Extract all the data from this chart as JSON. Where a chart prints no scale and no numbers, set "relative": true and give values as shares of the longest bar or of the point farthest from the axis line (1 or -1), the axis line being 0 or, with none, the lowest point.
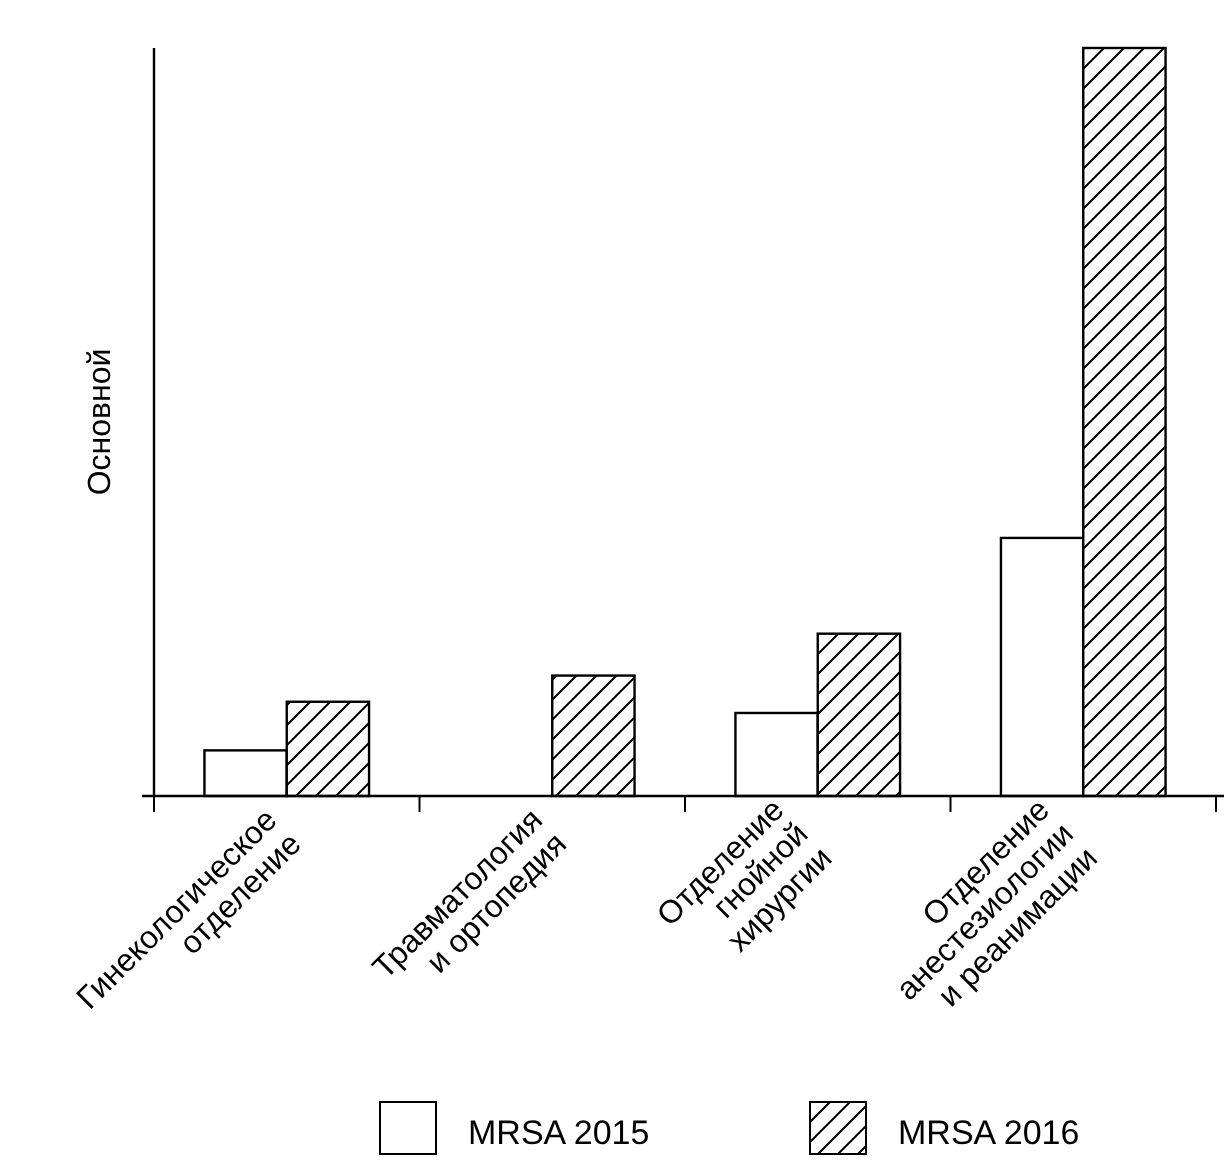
{
  "chart_data": {
    "type": "bar",
    "ylabel": "Основной",
    "relative": true,
    "legend": "bottom",
    "categories": [
      "Гинекологическое\nотделение",
      "Травматология\nи ортопедия",
      "Отделение\nгнойной\nхирургии",
      "Отделение\nанестезиологии\nи реанимации"
    ],
    "series": [
      {
        "name": "MRSA 2015",
        "color": "#ffffff",
        "values": [
          0.061,
          0,
          0.111,
          0.345
        ]
      },
      {
        "name": "MRSA 2016",
        "color": "#000000",
        "values": [
          0.126,
          0.161,
          0.217,
          1
        ]
      }
    ]
  }
}
